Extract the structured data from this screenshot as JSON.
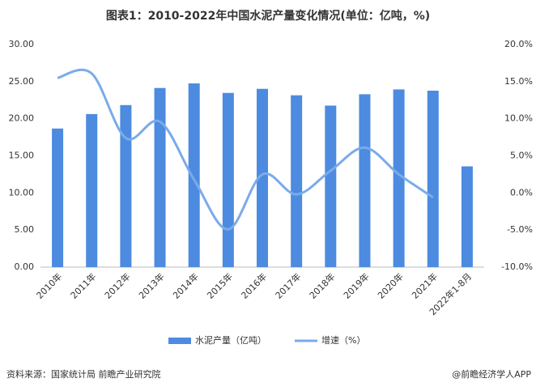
{
  "chart_data": {
    "type": "bar_line",
    "title": "图表1：2010-2022年中国水泥产量变化情况(单位：亿吨，%)",
    "categories": [
      "2010年",
      "2011年",
      "2012年",
      "2013年",
      "2014年",
      "2015年",
      "2016年",
      "2017年",
      "2018年",
      "2019年",
      "2020年",
      "2021年",
      "2022年1-8月"
    ],
    "series": [
      {
        "name": "水泥产量（亿吨）",
        "color": "#4d8be0",
        "type": "bar",
        "values": [
          18.68,
          20.63,
          21.84,
          24.14,
          24.76,
          23.48,
          24.03,
          23.16,
          21.77,
          23.3,
          23.95,
          23.78,
          13.58
        ]
      },
      {
        "name": "增速（%）",
        "color": "#7aabea",
        "type": "line",
        "axis": "y2",
        "smooth": true,
        "values": [
          15.5,
          16.1,
          7.4,
          9.6,
          1.8,
          -4.9,
          2.5,
          -0.2,
          3.0,
          6.1,
          2.5,
          -0.6,
          null
        ]
      }
    ],
    "ylim": [
      0,
      30
    ],
    "yticks": [
      {
        "value": 0,
        "label": "0.00"
      },
      {
        "value": 5,
        "label": "5.00"
      },
      {
        "value": 10,
        "label": "10.00"
      },
      {
        "value": 15,
        "label": "15.00"
      },
      {
        "value": 20,
        "label": "20.00"
      },
      {
        "value": 25,
        "label": "25.00"
      },
      {
        "value": 30,
        "label": "30.00"
      }
    ],
    "y2lim": [
      -10,
      20
    ],
    "y2ticks": [
      {
        "value": -10,
        "label": "-10.0%"
      },
      {
        "value": -5,
        "label": "-5.0%"
      },
      {
        "value": 0,
        "label": "0.0%"
      },
      {
        "value": 5,
        "label": "5.0%"
      },
      {
        "value": 10,
        "label": "10.0%"
      },
      {
        "value": 15,
        "label": "15.0%"
      },
      {
        "value": 20,
        "label": "20.0%"
      }
    ],
    "legend": "bottom",
    "source": "资料来源：国家统计局 前瞻产业研究院",
    "credit": "@前瞻经济学人APP"
  }
}
